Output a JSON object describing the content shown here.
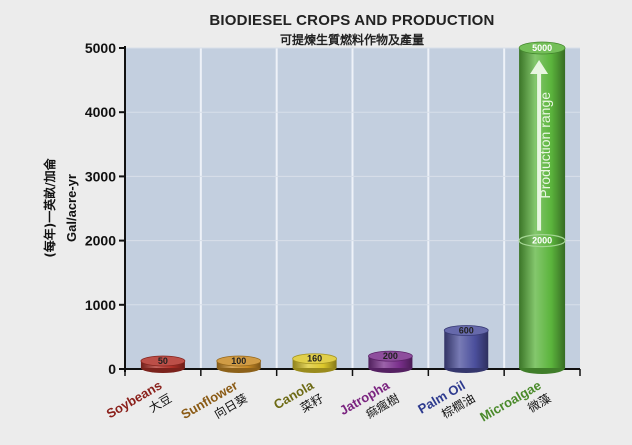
{
  "chart_data": {
    "type": "bar",
    "title": "BIODIESEL CROPS AND PRODUCTION",
    "subtitle": "可提煉生質燃料作物及產量",
    "ylabel": "Gal/acre-yr",
    "ylabel_zh": "(每年)一英畝/加侖",
    "ylim": [
      0,
      5000
    ],
    "yticks": [
      0,
      1000,
      2000,
      3000,
      4000,
      5000
    ],
    "grid": true,
    "categories": [
      "Soybeans",
      "Sunflower",
      "Canola",
      "Jatropha",
      "Palm Oil",
      "Microalgae"
    ],
    "categories_zh": [
      "大豆",
      "向日葵",
      "菜籽",
      "痲瘋樹",
      "棕櫚油",
      "微藻"
    ],
    "values": [
      50,
      100,
      160,
      200,
      600,
      5000
    ],
    "range_low": 2000,
    "value_labels": [
      "50",
      "100",
      "160",
      "200",
      "600",
      "5000"
    ],
    "range_low_label": "2000",
    "annotation": "Production range",
    "colors": [
      "#b03028",
      "#c98a24",
      "#dcc72a",
      "#7a2f8c",
      "#4b4f9c",
      "#5bb43c"
    ],
    "label_colors": [
      "#8a1f1a",
      "#8a5a14",
      "#6d6a14",
      "#7a237f",
      "#2d3a8e",
      "#4a8a2a"
    ],
    "panel_color": "#c3cfdf"
  }
}
